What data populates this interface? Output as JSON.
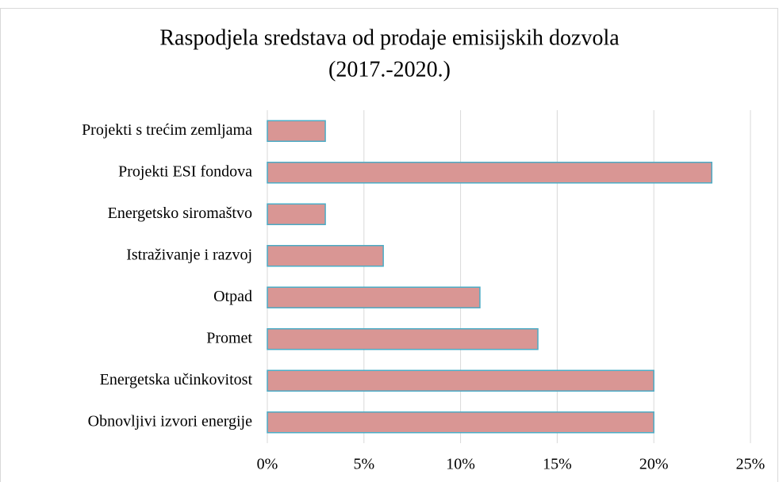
{
  "chart_data": {
    "type": "bar",
    "orientation": "horizontal",
    "title": [
      "Raspodjela sredstava od prodaje emisijskih dozvola",
      "(2017.-2020.)"
    ],
    "categories": [
      "Projekti s trećim zemljama",
      "Projekti ESI fondova",
      "Energetsko siromaštvo",
      "Istraživanje i razvoj",
      "Otpad",
      "Promet",
      "Energetska učinkovitost",
      "Obnovljivi izvori energije"
    ],
    "values": [
      3,
      23,
      3,
      6,
      11,
      14,
      20,
      20
    ],
    "color": "#d99694",
    "edge_color": "#4bacc6",
    "xlim": [
      0,
      25
    ],
    "xticks": [
      {
        "value": 0,
        "label": "0%"
      },
      {
        "value": 5,
        "label": "5%"
      },
      {
        "value": 10,
        "label": "10%"
      },
      {
        "value": 15,
        "label": "15%"
      },
      {
        "value": 20,
        "label": "20%"
      },
      {
        "value": 25,
        "label": "25%"
      }
    ],
    "grid": true
  }
}
